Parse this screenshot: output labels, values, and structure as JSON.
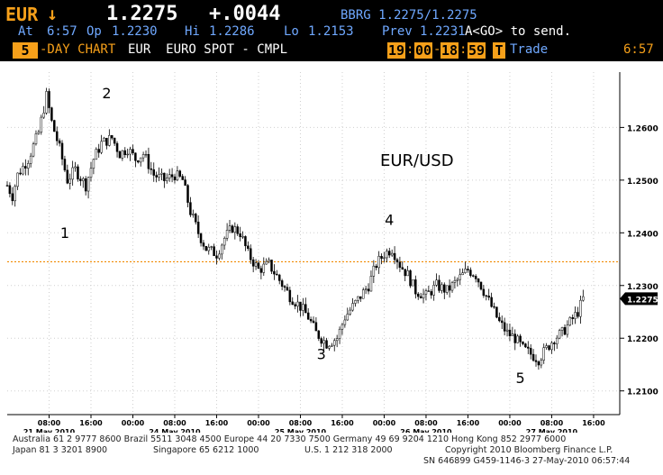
{
  "header": {
    "ticker": "EUR",
    "direction": "↓",
    "price": "1.2275",
    "change": "+.0044",
    "source": "BBRG 1.2275/1.2275",
    "at_label": "At",
    "at_time": "6:57",
    "op_label": "Op",
    "op": "1.2230",
    "hi_label": "Hi",
    "hi": "1.2286",
    "lo_label": "Lo",
    "lo": "1.2153",
    "prev_label": "Prev",
    "prev": "1.2231",
    "send_hint": "A<GO> to send.",
    "period_num": "5",
    "period_label": "-DAY CHART",
    "security": "EUR  EURO SPOT - CMPL",
    "session_start_h": "19",
    "session_start_m": "00",
    "session_end_h": "18",
    "session_end_m": "59",
    "trade_box": "T",
    "trade_label": "Trade",
    "clock": "6:57"
  },
  "chart_data": {
    "type": "candlestick",
    "title": "EUR/USD",
    "ylim": [
      1.2055,
      1.2705
    ],
    "yticks": [
      "1.2600",
      "1.2500",
      "1.2400",
      "1.2300",
      "1.2200",
      "1.2100"
    ],
    "ytick_values": [
      1.26,
      1.25,
      1.24,
      1.23,
      1.22,
      1.21
    ],
    "current_price_label": "1.2275",
    "current_price": 1.2275,
    "reference_line": 1.2345,
    "xaxis_hour_labels": [
      "08:00",
      "16:00",
      "00:00",
      "08:00",
      "16:00",
      "00:00",
      "08:00",
      "16:00",
      "00:00",
      "08:00",
      "16:00",
      "00:00",
      "08:00",
      "16:00"
    ],
    "xaxis_hour_hours": [
      8,
      16,
      24,
      32,
      40,
      48,
      56,
      64,
      72,
      80,
      88,
      96,
      104,
      112
    ],
    "xaxis_day_labels": [
      "21 May 2010",
      "24 May 2010",
      "25 May 2010",
      "26 May 2010",
      "27 May 2010"
    ],
    "xaxis_day_hours": [
      8,
      32,
      56,
      80,
      104
    ],
    "hours_range": [
      0,
      117
    ],
    "wave_labels": [
      {
        "text": "1",
        "hour": 11,
        "price": 1.239
      },
      {
        "text": "2",
        "hour": 19,
        "price": 1.2655
      },
      {
        "text": "3",
        "hour": 60,
        "price": 1.216
      },
      {
        "text": "4",
        "hour": 73,
        "price": 1.2415
      },
      {
        "text": "5",
        "hour": 98,
        "price": 1.2115
      }
    ],
    "path_points": [
      [
        0,
        1.249
      ],
      [
        1,
        1.247
      ],
      [
        2,
        1.251
      ],
      [
        4,
        1.254
      ],
      [
        6,
        1.259
      ],
      [
        7.5,
        1.266
      ],
      [
        8.5,
        1.261
      ],
      [
        10,
        1.256
      ],
      [
        11.5,
        1.25
      ],
      [
        13,
        1.252
      ],
      [
        15,
        1.249
      ],
      [
        16.5,
        1.254
      ],
      [
        18,
        1.257
      ],
      [
        20,
        1.258
      ],
      [
        21.5,
        1.255
      ],
      [
        23,
        1.256
      ],
      [
        24.5,
        1.254
      ],
      [
        26,
        1.255
      ],
      [
        28,
        1.251
      ],
      [
        30,
        1.25
      ],
      [
        32,
        1.251
      ],
      [
        33.5,
        1.25
      ],
      [
        35,
        1.244
      ],
      [
        36.5,
        1.24
      ],
      [
        38,
        1.237
      ],
      [
        40,
        1.236
      ],
      [
        41.5,
        1.239
      ],
      [
        43,
        1.241
      ],
      [
        44.5,
        1.24
      ],
      [
        46,
        1.236
      ],
      [
        48,
        1.233
      ],
      [
        50,
        1.234
      ],
      [
        52,
        1.231
      ],
      [
        54,
        1.228
      ],
      [
        56,
        1.226
      ],
      [
        57.5,
        1.224
      ],
      [
        59,
        1.221
      ],
      [
        61,
        1.219
      ],
      [
        63,
        1.22
      ],
      [
        64.5,
        1.224
      ],
      [
        66,
        1.226
      ],
      [
        67.5,
        1.228
      ],
      [
        69,
        1.23
      ],
      [
        70.5,
        1.234
      ],
      [
        72,
        1.236
      ],
      [
        73.5,
        1.237
      ],
      [
        75,
        1.234
      ],
      [
        76.5,
        1.232
      ],
      [
        78,
        1.229
      ],
      [
        80,
        1.228
      ],
      [
        82,
        1.23
      ],
      [
        84,
        1.229
      ],
      [
        86,
        1.231
      ],
      [
        88,
        1.233
      ],
      [
        89.5,
        1.232
      ],
      [
        91,
        1.229
      ],
      [
        92.5,
        1.226
      ],
      [
        94,
        1.223
      ],
      [
        95.5,
        1.221
      ],
      [
        97,
        1.22
      ],
      [
        98.5,
        1.218
      ],
      [
        100,
        1.217
      ],
      [
        101.5,
        1.216
      ],
      [
        103,
        1.218
      ],
      [
        104.5,
        1.22
      ],
      [
        106,
        1.221
      ],
      [
        107.5,
        1.223
      ],
      [
        109,
        1.225
      ],
      [
        110,
        1.2275
      ]
    ]
  },
  "footer": {
    "line1": "Australia 61 2 9777 8600 Brazil 5511 3048 4500 Europe 44 20 7330 7500 Germany 49 69 9204 1210 Hong Kong 852 2977 6000",
    "line2_left": "Japan 81 3 3201 8900",
    "line2_mid1": "Singapore 65 6212 1000",
    "line2_mid2": "U.S. 1 212 318 2000",
    "line2_right": "Copyright 2010 Bloomberg Finance L.P.",
    "line3": "SN 646899 G459-1146-3 27-May-2010 06:57:44"
  },
  "colors": {
    "amber": "#f6a01a",
    "blue": "#6fa8ff",
    "reference_line": "#f08a00",
    "candle": "#000000"
  }
}
